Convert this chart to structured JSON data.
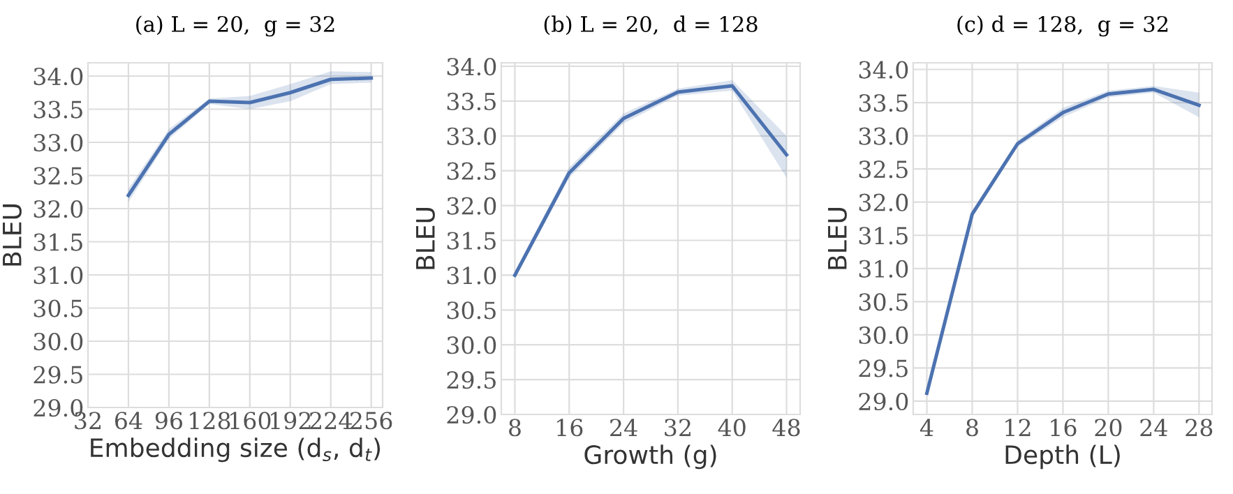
{
  "chart_data": [
    {
      "type": "line",
      "title": "(a) L = 20,  g = 32",
      "xlabel": "Embedding size (d$_{s}$, d$_{t}$)",
      "ylabel": "BLEU",
      "x": [
        64,
        96,
        128,
        160,
        192,
        224,
        256
      ],
      "series": [
        {
          "color": "#4c72b0",
          "values": [
            32.2,
            33.12,
            33.62,
            33.6,
            33.75,
            33.95,
            33.97
          ],
          "lower": [
            32.1,
            33.05,
            33.58,
            33.5,
            33.62,
            33.88,
            33.9
          ],
          "upper": [
            32.3,
            33.2,
            33.66,
            33.7,
            33.88,
            34.07,
            34.06
          ]
        }
      ],
      "xlim": [
        32,
        265
      ],
      "xticks": [
        32,
        64,
        96,
        128,
        160,
        192,
        224,
        256
      ],
      "ylim": [
        29,
        34.2
      ],
      "yticks": [
        {
          "value": 29,
          "label": "29.0"
        },
        29.5,
        {
          "value": 30,
          "label": "30.0"
        },
        30.5,
        {
          "value": 31,
          "label": "31.0"
        },
        31.5,
        {
          "value": 32,
          "label": "32.0"
        },
        32.5,
        {
          "value": 33,
          "label": "33.0"
        },
        33.5,
        {
          "value": 34,
          "label": "34.0"
        }
      ],
      "grid": true,
      "marker": "none",
      "line_style": "solid"
    },
    {
      "type": "line",
      "title": "(b) L = 20,  d = 128",
      "xlabel": "Growth (g)",
      "ylabel": "BLEU",
      "x": [
        8,
        16,
        24,
        32,
        40,
        48
      ],
      "series": [
        {
          "color": "#4c72b0",
          "values": [
            31.0,
            32.47,
            33.25,
            33.63,
            33.72,
            32.73
          ],
          "lower": [
            30.95,
            32.4,
            33.18,
            33.58,
            33.65,
            32.4
          ],
          "upper": [
            31.05,
            32.55,
            33.32,
            33.68,
            33.8,
            33.0
          ]
        }
      ],
      "xlim": [
        6,
        50
      ],
      "xticks": [
        8,
        16,
        24,
        32,
        40,
        48
      ],
      "ylim": [
        29,
        34.05
      ],
      "yticks": [
        {
          "value": 29,
          "label": "29.0"
        },
        29.5,
        {
          "value": 30,
          "label": "30.0"
        },
        30.5,
        {
          "value": 31,
          "label": "31.0"
        },
        31.5,
        {
          "value": 32,
          "label": "32.0"
        },
        32.5,
        {
          "value": 33,
          "label": "33.0"
        },
        33.5,
        {
          "value": 34,
          "label": "34.0"
        }
      ],
      "grid": true,
      "marker": "none",
      "line_style": "solid"
    },
    {
      "type": "line",
      "title": "(c) d = 128,  g = 32",
      "xlabel": "Depth (L)",
      "ylabel": "BLEU",
      "x": [
        4,
        8,
        12,
        16,
        20,
        24,
        28
      ],
      "series": [
        {
          "color": "#4c72b0",
          "values": [
            29.12,
            31.82,
            32.88,
            33.35,
            33.63,
            33.7,
            33.46
          ],
          "lower": [
            29.08,
            31.77,
            32.83,
            33.28,
            33.58,
            33.65,
            33.28
          ],
          "upper": [
            29.16,
            31.87,
            32.93,
            33.42,
            33.68,
            33.75,
            33.65
          ]
        }
      ],
      "xlim": [
        2.8,
        29.15
      ],
      "xticks": [
        4,
        8,
        12,
        16,
        20,
        24,
        28
      ],
      "ylim": [
        28.8,
        34.1
      ],
      "yticks": [
        {
          "value": 29,
          "label": "29.0"
        },
        29.5,
        {
          "value": 30,
          "label": "30.0"
        },
        30.5,
        {
          "value": 31,
          "label": "31.0"
        },
        31.5,
        {
          "value": 32,
          "label": "32.0"
        },
        32.5,
        {
          "value": 33,
          "label": "33.0"
        },
        33.5,
        {
          "value": 34,
          "label": "34.0"
        }
      ],
      "grid": true,
      "marker": "none",
      "line_style": "solid"
    }
  ]
}
